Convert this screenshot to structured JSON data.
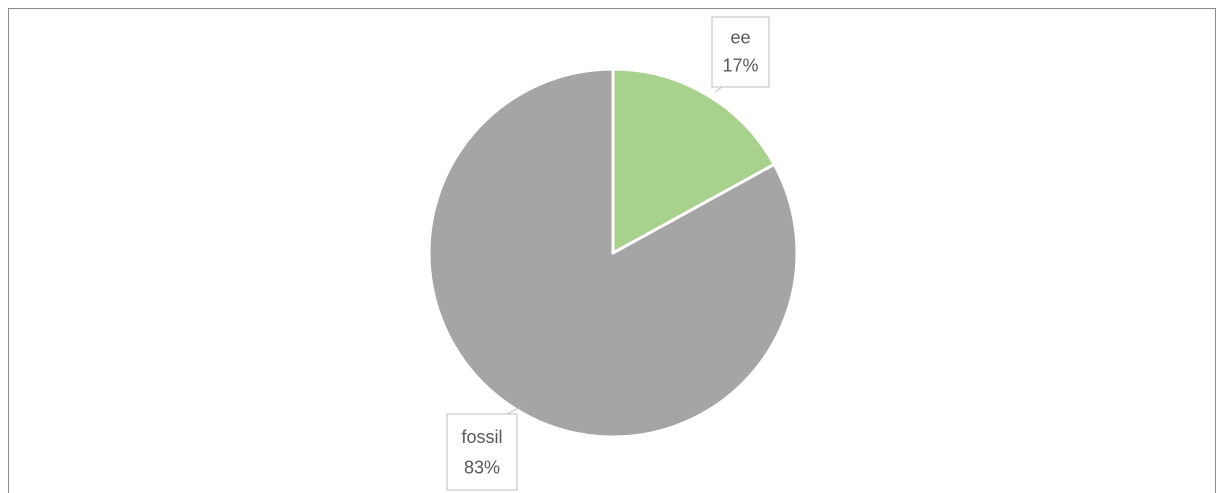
{
  "chart_data": {
    "type": "pie",
    "title": "",
    "categories": [
      "ee",
      "fossil"
    ],
    "values": [
      17,
      83
    ],
    "value_labels": [
      "17%",
      "83%"
    ],
    "colors": [
      "#a9d18e",
      "#a5a5a5"
    ],
    "start_angle_deg": 0,
    "direction": "clockwise",
    "legend": "none",
    "data_labels": "callout boxes with category name and percentage"
  }
}
